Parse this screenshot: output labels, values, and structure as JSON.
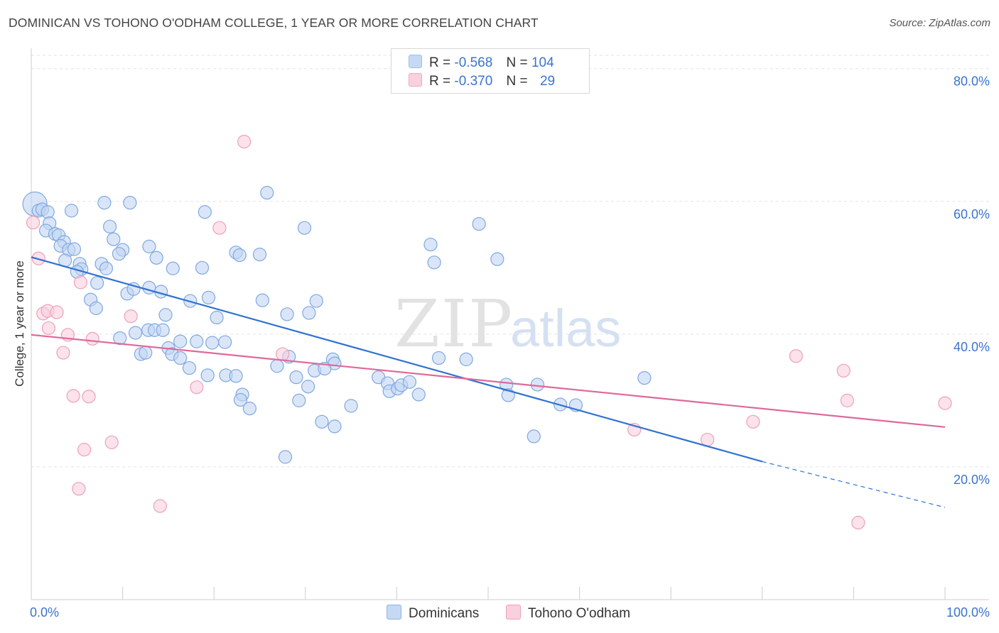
{
  "title": "DOMINICAN VS TOHONO O'ODHAM COLLEGE, 1 YEAR OR MORE CORRELATION CHART",
  "source": "Source: ZipAtlas.com",
  "watermark": {
    "zip": "ZIP",
    "atlas": "atlas"
  },
  "legend": {
    "r_label": "R =",
    "n_label": "N =",
    "rows": [
      {
        "r": "-0.568",
        "n": "104",
        "color": "#9dbfec",
        "fill": "#c5d9f5"
      },
      {
        "r": "-0.370",
        "n": "29",
        "color": "#f0a7bf",
        "fill": "#f9d0de"
      }
    ]
  },
  "bottom_legend": [
    {
      "label": "Dominicans",
      "fill": "#c5d9f5",
      "stroke": "#8fb2e3"
    },
    {
      "label": "Tohono O'odham",
      "fill": "#f9d0de",
      "stroke": "#eea0bb"
    }
  ],
  "chart_data": {
    "type": "scatter",
    "title": "DOMINICAN VS TOHONO O'ODHAM COLLEGE, 1 YEAR OR MORE CORRELATION CHART",
    "xlabel": "",
    "ylabel": "College, 1 year or more",
    "xlim": [
      0,
      100
    ],
    "ylim": [
      0,
      82
    ],
    "x_ticks": [
      {
        "v": 0,
        "label": "0.0%"
      },
      {
        "v": 100,
        "label": "100.0%"
      }
    ],
    "y_ticks": [
      {
        "v": 20,
        "label": "20.0%"
      },
      {
        "v": 40,
        "label": "40.0%"
      },
      {
        "v": 60,
        "label": "60.0%"
      },
      {
        "v": 80,
        "label": "80.0%"
      }
    ],
    "grid": true,
    "series": [
      {
        "name": "Dominicans",
        "stroke": "#7fa8e0",
        "fill": "#c2d6f3",
        "line_color": "#2f72d1",
        "trend": {
          "x0": 0,
          "y0": 51.6,
          "x1": 80,
          "y1": 20.8,
          "dash_to_x": 100,
          "dash_to_y": 13.9
        },
        "points": [
          [
            0.4,
            59.6
          ],
          [
            0.8,
            58.6
          ],
          [
            1.2,
            58.8
          ],
          [
            1.8,
            58.4
          ],
          [
            2.0,
            56.7
          ],
          [
            1.6,
            55.6
          ],
          [
            2.6,
            55.1
          ],
          [
            3.0,
            54.9
          ],
          [
            4.4,
            58.6
          ],
          [
            8.0,
            59.8
          ],
          [
            10.8,
            59.8
          ],
          [
            8.6,
            56.2
          ],
          [
            9.0,
            54.3
          ],
          [
            10.0,
            52.7
          ],
          [
            9.6,
            52.1
          ],
          [
            12.9,
            53.2
          ],
          [
            13.7,
            51.5
          ],
          [
            15.5,
            49.9
          ],
          [
            18.7,
            50.0
          ],
          [
            19.0,
            58.4
          ],
          [
            22.4,
            52.3
          ],
          [
            22.8,
            51.9
          ],
          [
            3.6,
            53.9
          ],
          [
            3.2,
            53.3
          ],
          [
            4.1,
            52.7
          ],
          [
            4.7,
            52.8
          ],
          [
            3.7,
            51.1
          ],
          [
            5.3,
            50.6
          ],
          [
            5.5,
            49.8
          ],
          [
            7.7,
            50.6
          ],
          [
            8.2,
            49.9
          ],
          [
            5.0,
            49.4
          ],
          [
            7.2,
            47.7
          ],
          [
            10.5,
            46.1
          ],
          [
            11.2,
            46.8
          ],
          [
            12.9,
            47.0
          ],
          [
            14.2,
            46.4
          ],
          [
            6.5,
            45.2
          ],
          [
            17.4,
            45.0
          ],
          [
            19.4,
            45.5
          ],
          [
            7.1,
            43.9
          ],
          [
            14.7,
            42.9
          ],
          [
            20.3,
            42.5
          ],
          [
            9.7,
            39.4
          ],
          [
            12.8,
            40.6
          ],
          [
            13.5,
            40.6
          ],
          [
            14.4,
            40.6
          ],
          [
            11.4,
            40.2
          ],
          [
            16.3,
            38.9
          ],
          [
            18.1,
            38.9
          ],
          [
            19.8,
            38.7
          ],
          [
            21.2,
            38.8
          ],
          [
            15.0,
            37.9
          ],
          [
            12.0,
            37.0
          ],
          [
            12.5,
            37.2
          ],
          [
            15.4,
            37.0
          ],
          [
            16.3,
            36.4
          ],
          [
            17.3,
            34.9
          ],
          [
            19.3,
            33.8
          ],
          [
            21.3,
            33.8
          ],
          [
            22.4,
            33.7
          ],
          [
            23.1,
            30.9
          ],
          [
            22.9,
            30.1
          ],
          [
            23.9,
            28.8
          ],
          [
            25.0,
            52.0
          ],
          [
            25.3,
            45.1
          ],
          [
            25.8,
            61.3
          ],
          [
            29.9,
            56.0
          ],
          [
            28.0,
            43.0
          ],
          [
            28.2,
            36.6
          ],
          [
            30.4,
            43.2
          ],
          [
            31.2,
            45.0
          ],
          [
            33.0,
            36.2
          ],
          [
            33.2,
            35.6
          ],
          [
            26.9,
            35.2
          ],
          [
            29.0,
            33.5
          ],
          [
            31.0,
            34.5
          ],
          [
            32.1,
            34.8
          ],
          [
            30.3,
            32.1
          ],
          [
            29.3,
            30.0
          ],
          [
            31.8,
            26.8
          ],
          [
            33.2,
            26.1
          ],
          [
            35.0,
            29.2
          ],
          [
            27.8,
            21.5
          ],
          [
            38.0,
            33.5
          ],
          [
            39.0,
            32.6
          ],
          [
            39.2,
            31.4
          ],
          [
            40.1,
            31.8
          ],
          [
            40.5,
            32.3
          ],
          [
            41.4,
            32.8
          ],
          [
            42.4,
            30.9
          ],
          [
            43.7,
            53.5
          ],
          [
            44.1,
            50.8
          ],
          [
            44.6,
            36.4
          ],
          [
            47.6,
            36.2
          ],
          [
            49.0,
            56.6
          ],
          [
            51.0,
            51.3
          ],
          [
            52.0,
            32.4
          ],
          [
            52.2,
            30.8
          ],
          [
            55.0,
            24.6
          ],
          [
            55.4,
            32.4
          ],
          [
            57.9,
            29.4
          ],
          [
            67.1,
            33.4
          ],
          [
            59.6,
            29.3
          ]
        ]
      },
      {
        "name": "Tohono O'odham",
        "stroke": "#eea0bb",
        "fill": "#f8cfdd",
        "line_color": "#e0689a",
        "trend": {
          "x0": 0,
          "y0": 39.9,
          "x1": 100,
          "y1": 26.0
        },
        "points": [
          [
            0.2,
            56.8
          ],
          [
            0.8,
            51.4
          ],
          [
            1.3,
            43.1
          ],
          [
            1.8,
            43.5
          ],
          [
            1.9,
            40.9
          ],
          [
            2.8,
            43.3
          ],
          [
            3.5,
            37.2
          ],
          [
            4.0,
            39.9
          ],
          [
            4.6,
            30.7
          ],
          [
            5.4,
            47.8
          ],
          [
            5.8,
            22.6
          ],
          [
            6.3,
            30.6
          ],
          [
            6.7,
            39.3
          ],
          [
            8.8,
            23.7
          ],
          [
            10.9,
            42.7
          ],
          [
            14.1,
            14.1
          ],
          [
            18.1,
            32.0
          ],
          [
            20.6,
            56.0
          ],
          [
            23.3,
            69.0
          ],
          [
            27.5,
            37.0
          ],
          [
            5.2,
            16.7
          ],
          [
            66.0,
            25.6
          ],
          [
            74.0,
            24.1
          ],
          [
            79.0,
            26.8
          ],
          [
            83.7,
            36.7
          ],
          [
            88.9,
            34.5
          ],
          [
            89.3,
            30.0
          ],
          [
            90.5,
            11.6
          ],
          [
            100.0,
            29.6
          ]
        ]
      }
    ]
  }
}
